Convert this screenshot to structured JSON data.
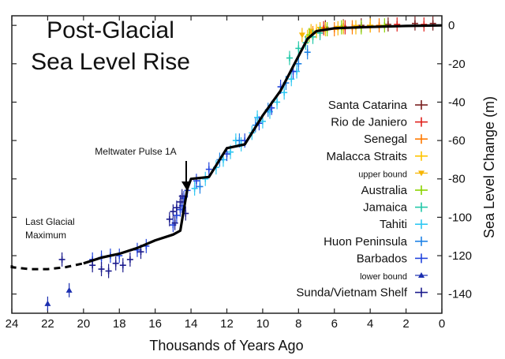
{
  "chart_data": {
    "type": "scatter",
    "title_lines": [
      "Post-Glacial",
      "Sea Level Rise"
    ],
    "xlabel": "Thousands of Years Ago",
    "ylabel": "Sea Level Change (m)",
    "xlim": [
      24,
      0
    ],
    "ylim": [
      -150,
      5
    ],
    "x_ticks": [
      24,
      22,
      20,
      18,
      16,
      14,
      12,
      10,
      8,
      6,
      4,
      2,
      0
    ],
    "y_ticks": [
      0,
      -20,
      -40,
      -60,
      -80,
      -100,
      -120,
      -140
    ],
    "annotations": {
      "mwp": "Meltwater Pulse 1A",
      "lgm_line1": "Last Glacial",
      "lgm_line2": "Maximum"
    },
    "legend_position": "right",
    "curve": {
      "dashed": [
        [
          25.3,
          -125
        ],
        [
          24,
          -126
        ],
        [
          23,
          -127
        ],
        [
          22,
          -127
        ],
        [
          21,
          -126
        ],
        [
          20.5,
          -125
        ],
        [
          20,
          -124
        ]
      ],
      "solid": [
        [
          20,
          -124
        ],
        [
          19,
          -121
        ],
        [
          18,
          -119
        ],
        [
          17,
          -116
        ],
        [
          16,
          -112
        ],
        [
          15,
          -109
        ],
        [
          14.6,
          -107
        ],
        [
          14.2,
          -85
        ],
        [
          14,
          -80
        ],
        [
          13,
          -79
        ],
        [
          12,
          -64
        ],
        [
          11,
          -62
        ],
        [
          10,
          -47
        ],
        [
          9,
          -34
        ],
        [
          8,
          -16
        ],
        [
          7.5,
          -7
        ],
        [
          7,
          -3
        ],
        [
          6,
          -1.5
        ],
        [
          4,
          -0.8
        ],
        [
          2,
          -0.3
        ],
        [
          0,
          0
        ]
      ]
    },
    "series": [
      {
        "name": "Santa Catarina",
        "color": "#7a1f1f",
        "marker": "plus",
        "points": [
          [
            6.5,
            -1
          ],
          [
            5.5,
            -0.5
          ],
          [
            4.5,
            0
          ],
          [
            3,
            0.5
          ],
          [
            1.5,
            1
          ],
          [
            0.5,
            1
          ]
        ]
      },
      {
        "name": "Rio de Janiero",
        "color": "#e0201b",
        "marker": "plus",
        "points": [
          [
            6.6,
            -1.5
          ],
          [
            5.4,
            -1
          ],
          [
            4,
            0
          ],
          [
            2.5,
            0.5
          ],
          [
            1,
            0.5
          ]
        ]
      },
      {
        "name": "Senegal",
        "color": "#ff7a00",
        "marker": "plus",
        "points": [
          [
            7.2,
            -4
          ],
          [
            6.8,
            -3
          ],
          [
            6,
            -2
          ],
          [
            5,
            -1
          ],
          [
            3.5,
            0
          ]
        ]
      },
      {
        "name": "Malacca Straits",
        "color": "#ffc400",
        "marker": "plus",
        "points": [
          [
            7.5,
            -6
          ],
          [
            7,
            -3
          ],
          [
            6.5,
            -2
          ],
          [
            5.5,
            -1
          ],
          [
            4,
            0
          ]
        ]
      },
      {
        "name": "upper bound",
        "color": "#f7b500",
        "marker": "triangle-down",
        "points": [
          [
            7.8,
            -5
          ],
          [
            7.3,
            -3
          ],
          [
            6.8,
            -2
          ],
          [
            5.8,
            -1.5
          ],
          [
            4.8,
            -1
          ]
        ]
      },
      {
        "name": "Australia",
        "color": "#8bd400",
        "marker": "plus",
        "points": [
          [
            7.4,
            -5
          ],
          [
            6.4,
            -2
          ],
          [
            5.6,
            -1
          ],
          [
            4.5,
            -1
          ],
          [
            3.2,
            0
          ]
        ]
      },
      {
        "name": "Jamaica",
        "color": "#22c8a8",
        "marker": "plus",
        "points": [
          [
            8.5,
            -17
          ],
          [
            8,
            -12
          ],
          [
            7.6,
            -9
          ],
          [
            7.2,
            -6
          ],
          [
            6.8,
            -4
          ]
        ]
      },
      {
        "name": "Tahiti",
        "color": "#2ec8f2",
        "marker": "plus",
        "points": [
          [
            13.8,
            -85
          ],
          [
            13.2,
            -80
          ],
          [
            12.6,
            -74
          ],
          [
            11.8,
            -66
          ],
          [
            11.2,
            -62
          ],
          [
            10.6,
            -56
          ],
          [
            10,
            -50
          ],
          [
            9.6,
            -45
          ],
          [
            9.2,
            -40
          ],
          [
            8.8,
            -35
          ],
          [
            8.4,
            -28
          ],
          [
            8.1,
            -24
          ],
          [
            12.2,
            -70
          ],
          [
            11.5,
            -60
          ],
          [
            10.3,
            -48
          ]
        ]
      },
      {
        "name": "Huon Peninsula",
        "color": "#1e82e6",
        "marker": "plus",
        "points": [
          [
            13.5,
            -84
          ],
          [
            12.4,
            -70
          ],
          [
            11.3,
            -60
          ],
          [
            10.4,
            -52
          ],
          [
            9.7,
            -44
          ],
          [
            8.7,
            -30
          ],
          [
            8,
            -20
          ],
          [
            7.5,
            -14
          ]
        ]
      },
      {
        "name": "Barbados",
        "color": "#2244dd",
        "marker": "plus",
        "points": [
          [
            19.5,
            -122
          ],
          [
            19,
            -121
          ],
          [
            18.5,
            -120
          ],
          [
            18,
            -120
          ],
          [
            17,
            -117
          ],
          [
            16.5,
            -115
          ],
          [
            15,
            -104
          ],
          [
            14.8,
            -99
          ],
          [
            14.6,
            -96
          ],
          [
            14.5,
            -94
          ],
          [
            14.4,
            -90
          ],
          [
            14.2,
            -86
          ],
          [
            13.7,
            -81
          ],
          [
            13,
            -75
          ],
          [
            12,
            -67
          ],
          [
            11,
            -60
          ],
          [
            10.2,
            -51
          ],
          [
            9.5,
            -43
          ],
          [
            9,
            -32
          ],
          [
            8.3,
            -24
          ]
        ]
      },
      {
        "name": "lower bound",
        "color": "#1c2fb0",
        "marker": "triangle-up",
        "points": [
          [
            22,
            -145
          ],
          [
            20.8,
            -138
          ]
        ]
      },
      {
        "name": "Sunda/Vietnam Shelf",
        "color": "#1a1a8c",
        "marker": "plus",
        "points": [
          [
            21.2,
            -122
          ],
          [
            19.5,
            -125
          ],
          [
            19,
            -127
          ],
          [
            18.6,
            -128
          ],
          [
            18.2,
            -124
          ],
          [
            17.8,
            -125
          ],
          [
            17.4,
            -122
          ],
          [
            16.8,
            -118
          ],
          [
            15.2,
            -101
          ],
          [
            15,
            -97
          ],
          [
            14.8,
            -95
          ],
          [
            14.6,
            -92
          ],
          [
            14.5,
            -89
          ],
          [
            14.3,
            -98
          ],
          [
            14.9,
            -103
          ]
        ]
      }
    ]
  }
}
